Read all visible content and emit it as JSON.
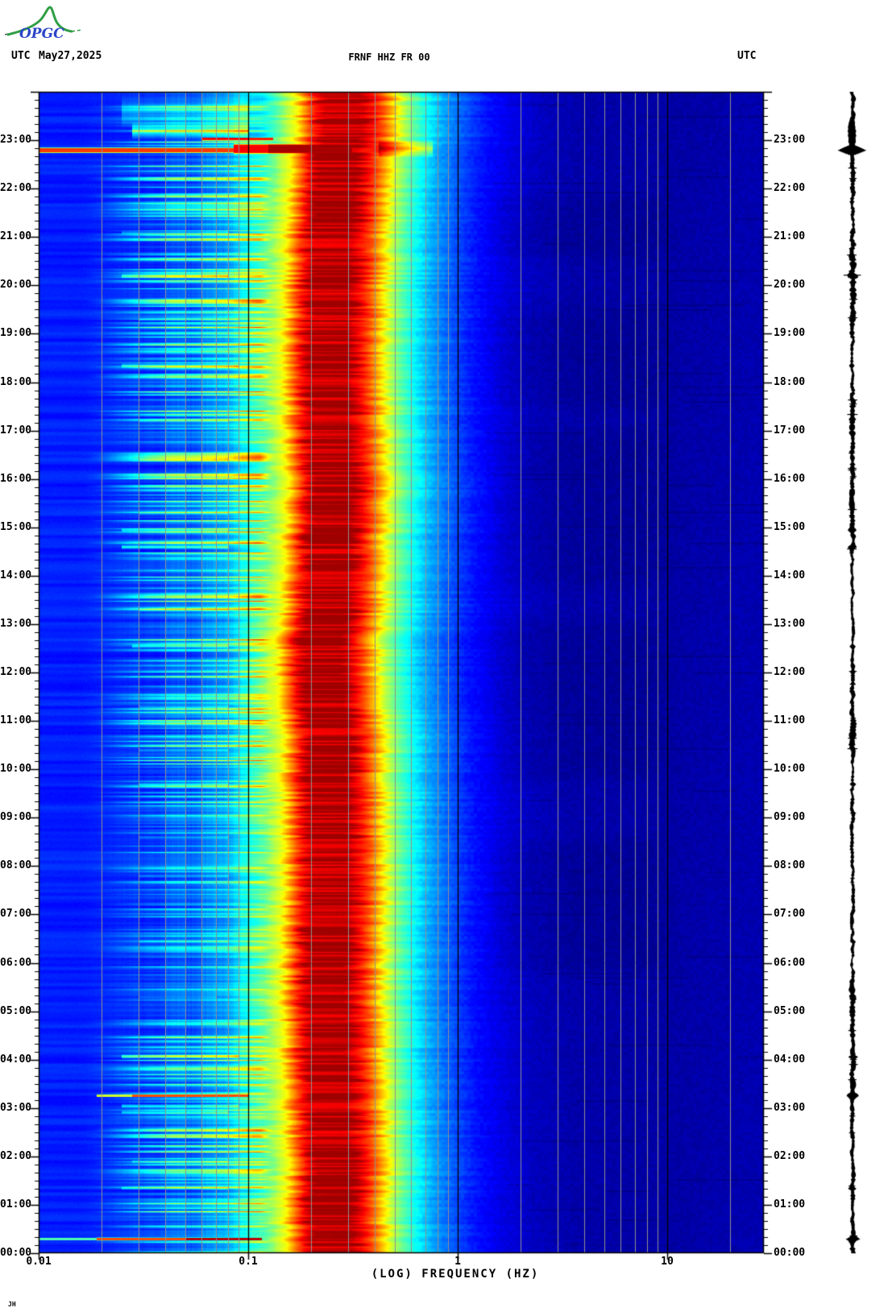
{
  "header": {
    "utc_left": "UTC",
    "date": "May27,2025",
    "utc_right": "UTC"
  },
  "logo": {
    "text": "OPGC",
    "curve_color": "#2f9e44",
    "text_color": "#2b46c8",
    "dash_color": "#444444"
  },
  "footer_mark": "JH",
  "chart_data": {
    "type": "heatmap",
    "subtype": "seismic-spectrogram",
    "title": "FRNF HHZ FR 00",
    "xlabel": "(LOG) FREQUENCY (HZ)",
    "x_scale": "log",
    "x_range_hz": [
      0.01,
      28.9
    ],
    "x_decade_ticks": [
      0.01,
      0.1,
      1,
      10
    ],
    "x_tick_labels": [
      "0.01",
      "0.1",
      "1",
      "10"
    ],
    "time_span_hours": 24,
    "y_hour_labels": [
      "00:00",
      "01:00",
      "02:00",
      "03:00",
      "04:00",
      "05:00",
      "06:00",
      "07:00",
      "08:00",
      "09:00",
      "10:00",
      "11:00",
      "12:00",
      "13:00",
      "14:00",
      "15:00",
      "16:00",
      "17:00",
      "18:00",
      "19:00",
      "20:00",
      "21:00",
      "22:00",
      "23:00"
    ],
    "minor_tick_minutes": 10,
    "colormap": "jet",
    "colors": {
      "grid_minor": "#909090",
      "grid_decade": "#000000",
      "axis": "#000000",
      "background_navy": "#0000a0",
      "low_band_blue": "#0030e8",
      "cyan_band": "#00e8ff",
      "yellow_band": "#ffdd00",
      "red_band": "#dd1100",
      "dark_red_core": "#990000"
    },
    "profile": [
      [
        -2.0,
        0.155
      ],
      [
        -1.82,
        0.152
      ],
      [
        -1.6,
        0.163
      ],
      [
        -1.4,
        0.185
      ],
      [
        -1.22,
        0.225
      ],
      [
        -1.08,
        0.3
      ],
      [
        -1.0,
        0.42
      ],
      [
        -0.95,
        0.5
      ],
      [
        -0.93,
        0.55
      ],
      [
        -0.88,
        0.62
      ],
      [
        -0.855,
        0.7
      ],
      [
        -0.82,
        0.8
      ],
      [
        -0.79,
        0.88
      ],
      [
        -0.75,
        0.945
      ],
      [
        -0.57,
        0.955
      ],
      [
        -0.52,
        0.89
      ],
      [
        -0.47,
        0.8
      ],
      [
        -0.42,
        0.68
      ],
      [
        -0.37,
        0.56
      ],
      [
        -0.32,
        0.47
      ],
      [
        -0.26,
        0.385
      ],
      [
        -0.18,
        0.29
      ],
      [
        -0.08,
        0.21
      ],
      [
        0.02,
        0.145
      ],
      [
        0.15,
        0.1
      ],
      [
        0.3,
        0.062
      ],
      [
        0.5,
        0.042
      ],
      [
        0.8,
        0.038
      ],
      [
        1.0,
        0.038
      ],
      [
        1.2,
        0.044
      ],
      [
        1.47,
        0.05
      ]
    ],
    "events": [
      {
        "t": 22.8,
        "w": 0.07,
        "f1": 0.01,
        "f2": 0.085,
        "dv": 0.82,
        "mode": "max"
      },
      {
        "t": 22.83,
        "w": 0.14,
        "f1": 0.085,
        "f2": 0.125,
        "dv": 0.88,
        "mode": "max"
      },
      {
        "t": 22.83,
        "w": 0.14,
        "f1": 0.125,
        "f2": 0.31,
        "dv": 0.96,
        "mode": "max"
      },
      {
        "t": 22.83,
        "w": 0.14,
        "f1": 0.31,
        "f2": 0.42,
        "dv": 0.85,
        "mode": "max"
      },
      {
        "t": 22.83,
        "w": 0.2,
        "f1": 0.42,
        "f2": 0.75,
        "dv": 0.22,
        "mode": "add"
      },
      {
        "t": 23.03,
        "w": 0.04,
        "f1": 0.06,
        "f2": 0.13,
        "dv": 0.85,
        "mode": "max"
      },
      {
        "t": 23.2,
        "w": 0.18,
        "f1": 0.028,
        "f2": 0.1,
        "dv": 0.3,
        "mode": "add"
      },
      {
        "t": 23.6,
        "w": 0.35,
        "f1": 0.025,
        "f2": 0.1,
        "dv": 0.12,
        "mode": "add"
      },
      {
        "t": 0.3,
        "w": 0.04,
        "f1": 0.01,
        "f2": 0.019,
        "dv": 0.45,
        "mode": "max"
      },
      {
        "t": 0.3,
        "w": 0.04,
        "f1": 0.019,
        "f2": 0.05,
        "dv": 0.8,
        "mode": "max"
      },
      {
        "t": 0.3,
        "w": 0.04,
        "f1": 0.05,
        "f2": 0.115,
        "dv": 0.94,
        "mode": "max"
      },
      {
        "t": 3.26,
        "w": 0.035,
        "f1": 0.019,
        "f2": 0.028,
        "dv": 0.58,
        "mode": "max"
      },
      {
        "t": 3.26,
        "w": 0.035,
        "f1": 0.028,
        "f2": 0.1,
        "dv": 0.8,
        "mode": "max"
      },
      {
        "t": 3.05,
        "w": 0.05,
        "f1": 0.025,
        "f2": 0.09,
        "dv": 0.2,
        "mode": "add"
      },
      {
        "t": 2.92,
        "w": 0.04,
        "f1": 0.025,
        "f2": 0.08,
        "dv": 0.16,
        "mode": "add"
      },
      {
        "t": 4.07,
        "w": 0.05,
        "f1": 0.025,
        "f2": 0.09,
        "dv": 0.26,
        "mode": "add"
      },
      {
        "t": 1.35,
        "w": 0.04,
        "f1": 0.025,
        "f2": 0.08,
        "dv": 0.14,
        "mode": "add"
      },
      {
        "t": 1.9,
        "w": 0.04,
        "f1": 0.028,
        "f2": 0.08,
        "dv": 0.11,
        "mode": "add"
      },
      {
        "t": 5.3,
        "w": 0.03,
        "f1": 0.03,
        "f2": 0.07,
        "dv": 0.08,
        "mode": "add"
      },
      {
        "t": 6.45,
        "w": 0.04,
        "f1": 0.03,
        "f2": 0.08,
        "dv": 0.1,
        "mode": "add"
      },
      {
        "t": 7.8,
        "w": 0.04,
        "f1": 0.03,
        "f2": 0.08,
        "dv": 0.1,
        "mode": "add"
      },
      {
        "t": 8.6,
        "w": 0.04,
        "f1": 0.03,
        "f2": 0.08,
        "dv": 0.1,
        "mode": "add"
      },
      {
        "t": 9.7,
        "w": 0.04,
        "f1": 0.03,
        "f2": 0.08,
        "dv": 0.14,
        "mode": "add"
      },
      {
        "t": 10.4,
        "w": 0.04,
        "f1": 0.03,
        "f2": 0.08,
        "dv": 0.11,
        "mode": "add"
      },
      {
        "t": 11.3,
        "w": 0.04,
        "f1": 0.03,
        "f2": 0.08,
        "dv": 0.12,
        "mode": "add"
      },
      {
        "t": 12.55,
        "w": 0.05,
        "f1": 0.028,
        "f2": 0.08,
        "dv": 0.15,
        "mode": "add"
      },
      {
        "t": 13.3,
        "w": 0.04,
        "f1": 0.03,
        "f2": 0.08,
        "dv": 0.11,
        "mode": "add"
      },
      {
        "t": 14.6,
        "w": 0.05,
        "f1": 0.025,
        "f2": 0.08,
        "dv": 0.24,
        "mode": "add"
      },
      {
        "t": 14.95,
        "w": 0.04,
        "f1": 0.025,
        "f2": 0.08,
        "dv": 0.18,
        "mode": "add"
      },
      {
        "t": 15.3,
        "w": 0.04,
        "f1": 0.03,
        "f2": 0.08,
        "dv": 0.1,
        "mode": "add"
      },
      {
        "t": 16.4,
        "w": 0.04,
        "f1": 0.03,
        "f2": 0.08,
        "dv": 0.1,
        "mode": "add"
      },
      {
        "t": 17.2,
        "w": 0.04,
        "f1": 0.03,
        "f2": 0.08,
        "dv": 0.09,
        "mode": "add"
      },
      {
        "t": 18.35,
        "w": 0.05,
        "f1": 0.025,
        "f2": 0.09,
        "dv": 0.18,
        "mode": "add"
      },
      {
        "t": 19.3,
        "w": 0.04,
        "f1": 0.03,
        "f2": 0.09,
        "dv": 0.14,
        "mode": "add"
      },
      {
        "t": 20.2,
        "w": 0.05,
        "f1": 0.025,
        "f2": 0.08,
        "dv": 0.2,
        "mode": "add"
      },
      {
        "t": 21.1,
        "w": 0.04,
        "f1": 0.025,
        "f2": 0.08,
        "dv": 0.13,
        "mode": "add"
      }
    ],
    "dark_patches": [
      [
        5.6,
        8.3
      ],
      [
        9.6,
        12.8
      ],
      [
        13.6,
        16.8
      ],
      [
        17.2,
        19.3
      ],
      [
        20.3,
        21.6
      ]
    ]
  },
  "trace": {
    "color": "#000000",
    "base_amp": 2.4,
    "amp_events": [
      {
        "t": 22.8,
        "w": 0.1,
        "amp": 15.0
      },
      {
        "t": 23.2,
        "w": 0.45,
        "amp": 3.5
      },
      {
        "t": 0.3,
        "w": 0.07,
        "amp": 6.0
      },
      {
        "t": 3.26,
        "w": 0.07,
        "amp": 6.0
      },
      {
        "t": 4.07,
        "w": 0.05,
        "amp": 3.0
      },
      {
        "t": 14.6,
        "w": 0.05,
        "amp": 3.0
      },
      {
        "t": 14.95,
        "w": 0.05,
        "amp": 2.5
      },
      {
        "t": 18.35,
        "w": 0.05,
        "amp": 2.5
      },
      {
        "t": 20.2,
        "w": 0.06,
        "amp": 3.0
      },
      {
        "t": 12.55,
        "w": 0.05,
        "amp": 2.5
      },
      {
        "t": 9.7,
        "w": 0.04,
        "amp": 2.0
      },
      {
        "t": 21.1,
        "w": 0.04,
        "amp": 2.5
      },
      {
        "t": 1.35,
        "w": 0.04,
        "amp": 2.5
      },
      {
        "t": 6.45,
        "w": 0.04,
        "amp": 2.0
      }
    ]
  }
}
